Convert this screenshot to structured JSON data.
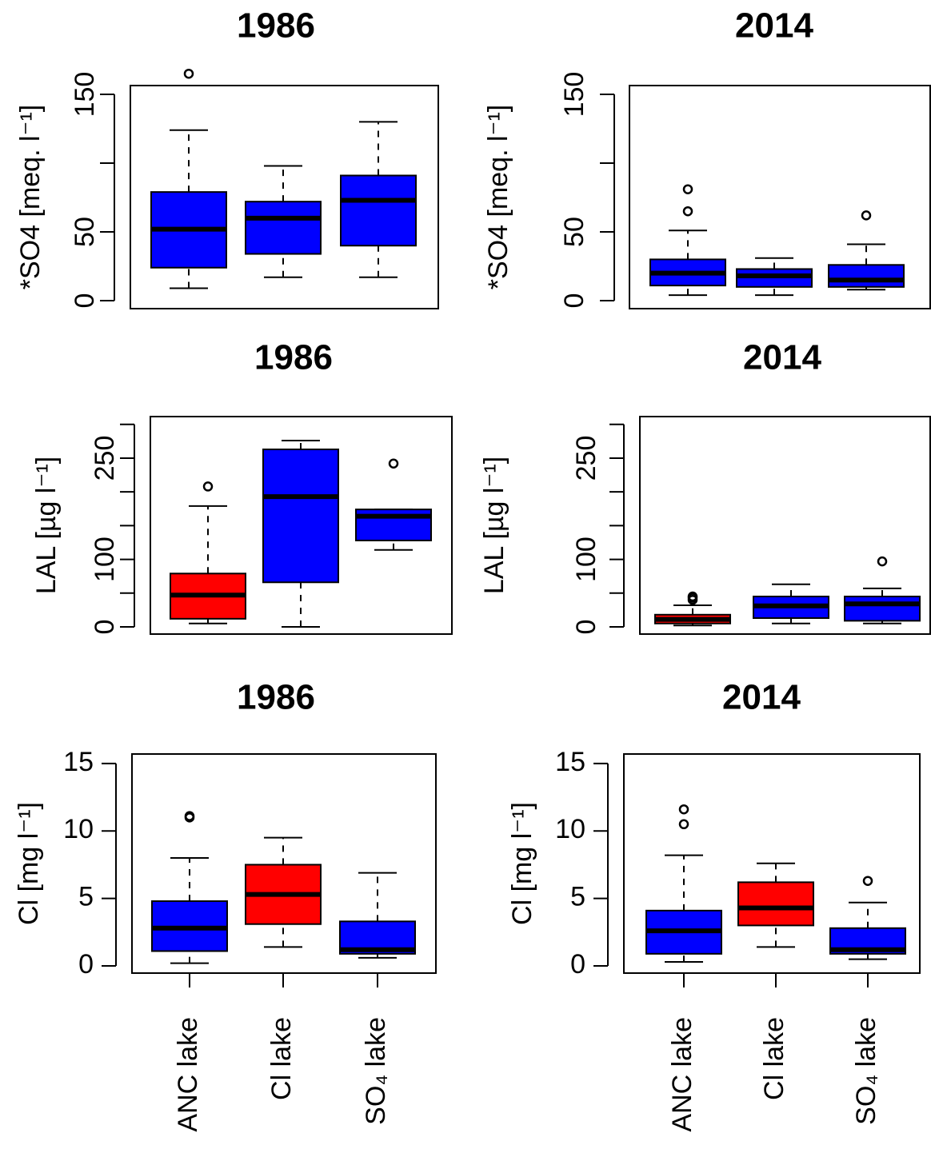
{
  "chart_data": [
    {
      "type": "box",
      "title": "1986",
      "ylabel": "*SO4 [meq. l⁻¹]",
      "ylim": [
        -5.8,
        156.4
      ],
      "yticks": [
        0,
        50,
        150
      ],
      "unlabeled_yticks": [
        100
      ],
      "ytick_labels_rotated": true,
      "boxes": [
        {
          "color": "#0000ff",
          "whislo": 9,
          "q1": 24,
          "med": 52,
          "q3": 79,
          "whishi": 124,
          "fliers": [
            165
          ]
        },
        {
          "color": "#0000ff",
          "whislo": 17,
          "q1": 34,
          "med": 60,
          "q3": 72,
          "whishi": 98,
          "fliers": []
        },
        {
          "color": "#0000ff",
          "whislo": 17,
          "q1": 40,
          "med": 73,
          "q3": 91,
          "whishi": 130,
          "fliers": []
        }
      ]
    },
    {
      "type": "box",
      "title": "2014",
      "ylabel": "*SO4 [meq. l⁻¹]",
      "ylim": [
        -5.8,
        156.4
      ],
      "yticks": [
        0,
        50,
        150
      ],
      "unlabeled_yticks": [
        100
      ],
      "ytick_labels_rotated": true,
      "boxes": [
        {
          "color": "#0000ff",
          "whislo": 4,
          "q1": 11,
          "med": 20,
          "q3": 30,
          "whishi": 51,
          "fliers": [
            65,
            81
          ]
        },
        {
          "color": "#0000ff",
          "whislo": 4,
          "q1": 10,
          "med": 18,
          "q3": 23,
          "whishi": 31,
          "fliers": []
        },
        {
          "color": "#0000ff",
          "whislo": 8,
          "q1": 10,
          "med": 15,
          "q3": 26,
          "whishi": 41,
          "fliers": [
            62
          ]
        }
      ]
    },
    {
      "type": "box",
      "title": "1986",
      "ylabel": "LAL [µg l⁻¹]",
      "ylim": [
        -10.7,
        311.6
      ],
      "yticks": [
        0,
        100,
        250
      ],
      "unlabeled_yticks": [
        50,
        150,
        200,
        300
      ],
      "ytick_labels_rotated": true,
      "boxes": [
        {
          "color": "#ff0000",
          "whislo": 5,
          "q1": 12,
          "med": 47,
          "q3": 79,
          "whishi": 179,
          "fliers": [
            208
          ]
        },
        {
          "color": "#0000ff",
          "whislo": 0,
          "q1": 66,
          "med": 193,
          "q3": 263,
          "whishi": 276,
          "fliers": []
        },
        {
          "color": "#0000ff",
          "whislo": 114,
          "q1": 128,
          "med": 164,
          "q3": 174,
          "whishi": 174,
          "fliers": [
            242
          ]
        }
      ]
    },
    {
      "type": "box",
      "title": "2014",
      "ylabel": "LAL [µg l⁻¹]",
      "ylim": [
        -10.7,
        311.6
      ],
      "yticks": [
        0,
        100,
        250
      ],
      "unlabeled_yticks": [
        50,
        150,
        200,
        300
      ],
      "ytick_labels_rotated": true,
      "boxes": [
        {
          "color": "#ff0000",
          "whislo": 2,
          "q1": 5,
          "med": 11,
          "q3": 18,
          "whishi": 32,
          "fliers": [
            40,
            43,
            45
          ]
        },
        {
          "color": "#0000ff",
          "whislo": 5,
          "q1": 13,
          "med": 31,
          "q3": 45,
          "whishi": 63,
          "fliers": []
        },
        {
          "color": "#0000ff",
          "whislo": 5,
          "q1": 9,
          "med": 34,
          "q3": 45,
          "whishi": 57,
          "fliers": [
            97
          ]
        }
      ]
    },
    {
      "type": "box",
      "title": "1986",
      "ylabel": "Cl [mg l⁻¹]",
      "ylim": [
        -0.53,
        15.7
      ],
      "yticks": [
        0,
        5,
        10,
        15
      ],
      "ytick_labels_rotated": false,
      "categories": [
        "ANC lake",
        "Cl lake",
        "SO₄ lake"
      ],
      "boxes": [
        {
          "color": "#0000ff",
          "whislo": 0.2,
          "q1": 1.1,
          "med": 2.8,
          "q3": 4.8,
          "whishi": 8.0,
          "fliers": [
            11.0,
            11.1
          ]
        },
        {
          "color": "#ff0000",
          "whislo": 1.4,
          "q1": 3.1,
          "med": 5.3,
          "q3": 7.5,
          "whishi": 9.5,
          "fliers": []
        },
        {
          "color": "#0000ff",
          "whislo": 0.6,
          "q1": 0.9,
          "med": 1.2,
          "q3": 3.3,
          "whishi": 6.9,
          "fliers": []
        }
      ]
    },
    {
      "type": "box",
      "title": "2014",
      "ylabel": "Cl [mg l⁻¹]",
      "ylim": [
        -0.53,
        15.7
      ],
      "yticks": [
        0,
        5,
        10,
        15
      ],
      "ytick_labels_rotated": false,
      "categories": [
        "ANC lake",
        "Cl lake",
        "SO₄ lake"
      ],
      "boxes": [
        {
          "color": "#0000ff",
          "whislo": 0.3,
          "q1": 0.9,
          "med": 2.6,
          "q3": 4.1,
          "whishi": 8.2,
          "fliers": [
            10.5,
            11.6
          ]
        },
        {
          "color": "#ff0000",
          "whislo": 1.4,
          "q1": 3.0,
          "med": 4.3,
          "q3": 6.2,
          "whishi": 7.6,
          "fliers": []
        },
        {
          "color": "#0000ff",
          "whislo": 0.5,
          "q1": 0.9,
          "med": 1.2,
          "q3": 2.8,
          "whishi": 4.7,
          "fliers": [
            6.3
          ]
        }
      ]
    }
  ]
}
